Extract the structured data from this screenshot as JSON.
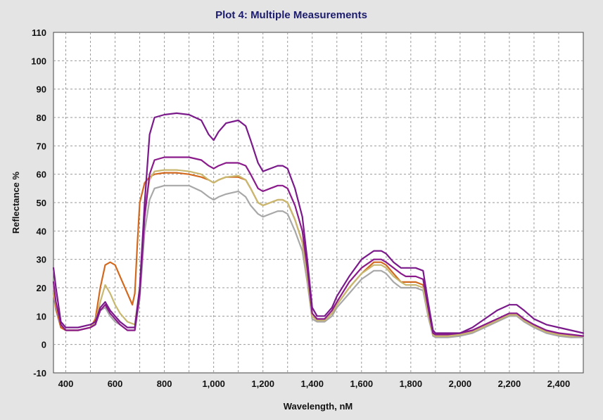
{
  "chart_data": {
    "type": "line",
    "title": "Plot 4: Multiple Measurements",
    "xlabel": "Wavelength, nM",
    "ylabel": "Reflectance %",
    "xlim": [
      350,
      2500
    ],
    "ylim": [
      -10,
      110
    ],
    "xticks": [
      400,
      600,
      800,
      1000,
      1200,
      1400,
      1600,
      1800,
      2000,
      2200,
      2400
    ],
    "xtick_labels": [
      "400",
      "600",
      "800",
      "1,000",
      "1,200",
      "1,400",
      "1,600",
      "1,800",
      "2,000",
      "2,200",
      "2,400"
    ],
    "yticks": [
      -10,
      0,
      10,
      20,
      30,
      40,
      50,
      60,
      70,
      80,
      90,
      100,
      110
    ],
    "ytick_labels": [
      "-10",
      "0",
      "10",
      "20",
      "30",
      "40",
      "50",
      "60",
      "70",
      "80",
      "90",
      "100",
      "110"
    ],
    "grid": true,
    "legend": "none",
    "series": [
      {
        "color": "#7a1a8a",
        "x": [
          350,
          360,
          380,
          400,
          450,
          500,
          520,
          540,
          560,
          580,
          600,
          620,
          650,
          680,
          700,
          720,
          740,
          760,
          800,
          850,
          900,
          950,
          980,
          1000,
          1020,
          1050,
          1100,
          1130,
          1150,
          1180,
          1200,
          1230,
          1260,
          1280,
          1300,
          1330,
          1360,
          1380,
          1400,
          1420,
          1450,
          1480,
          1500,
          1550,
          1600,
          1650,
          1680,
          1700,
          1730,
          1760,
          1780,
          1820,
          1850,
          1870,
          1890,
          1900,
          1950,
          2000,
          2050,
          2100,
          2150,
          2200,
          2230,
          2260,
          2300,
          2350,
          2400,
          2450,
          2500
        ],
        "y": [
          27,
          20,
          8,
          6,
          6,
          7,
          8,
          13,
          15,
          12,
          10,
          8,
          6,
          6,
          20,
          50,
          74,
          80,
          81,
          81.5,
          81,
          79,
          74,
          72,
          75,
          78,
          79,
          77,
          72,
          64,
          61,
          62,
          63,
          63,
          62,
          55,
          45,
          30,
          13,
          10,
          10,
          13,
          17,
          24,
          30,
          33,
          33,
          32,
          29,
          27,
          27,
          27,
          26,
          15,
          5,
          4,
          4,
          4,
          6,
          9,
          12,
          14,
          14,
          12,
          9,
          7,
          6,
          5,
          4
        ]
      },
      {
        "color": "#8b1a8b",
        "x": [
          350,
          360,
          380,
          400,
          450,
          500,
          520,
          540,
          560,
          580,
          600,
          620,
          650,
          680,
          700,
          720,
          740,
          760,
          800,
          850,
          900,
          950,
          980,
          1000,
          1020,
          1050,
          1100,
          1130,
          1150,
          1180,
          1200,
          1230,
          1260,
          1280,
          1300,
          1330,
          1360,
          1380,
          1400,
          1420,
          1450,
          1480,
          1500,
          1550,
          1600,
          1650,
          1680,
          1700,
          1730,
          1760,
          1780,
          1820,
          1850,
          1870,
          1890,
          1900,
          1950,
          2000,
          2050,
          2100,
          2150,
          2200,
          2230,
          2260,
          2300,
          2350,
          2400,
          2450,
          2500
        ],
        "y": [
          22,
          15,
          7,
          5,
          5,
          6,
          7,
          12,
          14,
          11,
          9,
          7,
          5,
          5,
          18,
          45,
          60,
          65,
          66,
          66,
          66,
          65,
          63,
          62,
          63,
          64,
          64,
          63,
          60,
          55,
          54,
          55,
          56,
          56,
          55,
          49,
          40,
          27,
          11,
          9,
          9,
          12,
          15,
          22,
          27,
          30,
          30,
          29,
          27,
          25,
          24,
          24,
          23,
          13,
          4,
          3.5,
          3.5,
          4,
          5,
          7,
          9,
          11,
          11,
          9,
          7,
          5,
          4,
          3.5,
          3
        ]
      },
      {
        "color": "#c8b870",
        "x": [
          350,
          360,
          380,
          400,
          450,
          500,
          520,
          540,
          560,
          580,
          600,
          620,
          650,
          680,
          700,
          720,
          740,
          760,
          800,
          850,
          900,
          950,
          980,
          1000,
          1020,
          1050,
          1100,
          1130,
          1150,
          1180,
          1200,
          1230,
          1260,
          1280,
          1300,
          1330,
          1360,
          1380,
          1400,
          1420,
          1450,
          1480,
          1500,
          1550,
          1600,
          1650,
          1680,
          1700,
          1730,
          1760,
          1780,
          1820,
          1850,
          1870,
          1890,
          1900,
          1950,
          2000,
          2050,
          2100,
          2150,
          2200,
          2230,
          2260,
          2300,
          2350,
          2400,
          2450,
          2500
        ],
        "y": [
          20,
          14,
          7,
          5,
          5,
          6,
          8,
          15,
          21,
          18,
          14,
          11,
          8,
          7,
          20,
          48,
          58,
          61,
          61.5,
          61.5,
          61,
          60,
          58,
          57,
          58,
          59,
          59.5,
          58,
          55,
          50,
          49,
          50,
          51,
          51,
          50,
          44,
          36,
          24,
          10,
          8.5,
          8.5,
          11,
          14,
          20,
          25,
          28,
          28,
          27,
          24,
          22,
          21,
          21,
          20,
          11,
          3.5,
          3,
          3,
          3.5,
          4.5,
          6.5,
          8.5,
          10.5,
          10.5,
          8.5,
          6.5,
          4.5,
          3.5,
          3,
          3
        ]
      },
      {
        "color": "#d2691e",
        "x": [
          350,
          360,
          380,
          400,
          450,
          500,
          520,
          540,
          560,
          580,
          600,
          620,
          650,
          670,
          680,
          690,
          700,
          720,
          740,
          760,
          800,
          850,
          900,
          950,
          980,
          1000,
          1020,
          1050,
          1100,
          1130,
          1150,
          1180,
          1200,
          1230,
          1260,
          1280,
          1300,
          1330,
          1360,
          1380,
          1400,
          1420,
          1450,
          1480,
          1500,
          1550,
          1600,
          1650,
          1680,
          1700,
          1730,
          1760,
          1780,
          1820,
          1850,
          1870,
          1890,
          1900,
          1950,
          2000,
          2050,
          2100,
          2150,
          2200,
          2230,
          2260,
          2300,
          2350,
          2400,
          2450,
          2500
        ],
        "y": [
          19,
          13,
          6,
          5,
          5,
          6,
          9,
          20,
          28,
          29,
          28,
          24,
          18,
          14,
          18,
          35,
          50,
          57,
          59,
          60,
          60.5,
          60.5,
          60,
          59,
          58,
          57,
          58,
          59,
          59,
          58,
          55,
          50,
          49,
          50,
          51,
          51,
          50,
          44,
          36,
          24,
          10,
          8.5,
          8.5,
          11,
          14,
          20,
          25,
          29,
          29,
          28,
          25,
          22,
          22,
          22,
          21,
          11,
          3.5,
          3,
          3,
          3.5,
          4.5,
          6.5,
          8.5,
          10.5,
          10.5,
          8.5,
          6.5,
          4.5,
          3.5,
          3,
          3
        ]
      },
      {
        "color": "#a8a8a8",
        "x": [
          350,
          360,
          380,
          400,
          450,
          500,
          520,
          540,
          560,
          580,
          600,
          620,
          650,
          680,
          700,
          720,
          740,
          760,
          800,
          850,
          900,
          950,
          980,
          1000,
          1020,
          1050,
          1100,
          1130,
          1150,
          1180,
          1200,
          1230,
          1260,
          1280,
          1300,
          1330,
          1360,
          1380,
          1400,
          1420,
          1450,
          1480,
          1500,
          1550,
          1600,
          1650,
          1680,
          1700,
          1730,
          1760,
          1780,
          1820,
          1850,
          1870,
          1890,
          1900,
          1950,
          2000,
          2050,
          2100,
          2150,
          2200,
          2230,
          2260,
          2300,
          2350,
          2400,
          2450,
          2500
        ],
        "y": [
          18,
          12,
          6,
          5,
          5,
          6,
          7,
          12,
          13,
          10,
          8,
          7,
          5,
          5,
          16,
          40,
          51,
          55,
          56,
          56,
          56,
          54,
          52,
          51,
          52,
          53,
          54,
          52,
          49,
          46,
          45,
          46,
          47,
          47,
          46,
          40,
          33,
          22,
          9,
          8,
          8,
          10,
          13,
          18,
          23,
          26,
          26,
          25,
          22,
          20,
          20,
          20,
          19,
          10,
          3,
          2.5,
          2.5,
          3,
          4,
          6,
          8,
          10,
          10,
          8,
          6,
          4,
          3,
          2.5,
          2.5
        ]
      }
    ]
  }
}
